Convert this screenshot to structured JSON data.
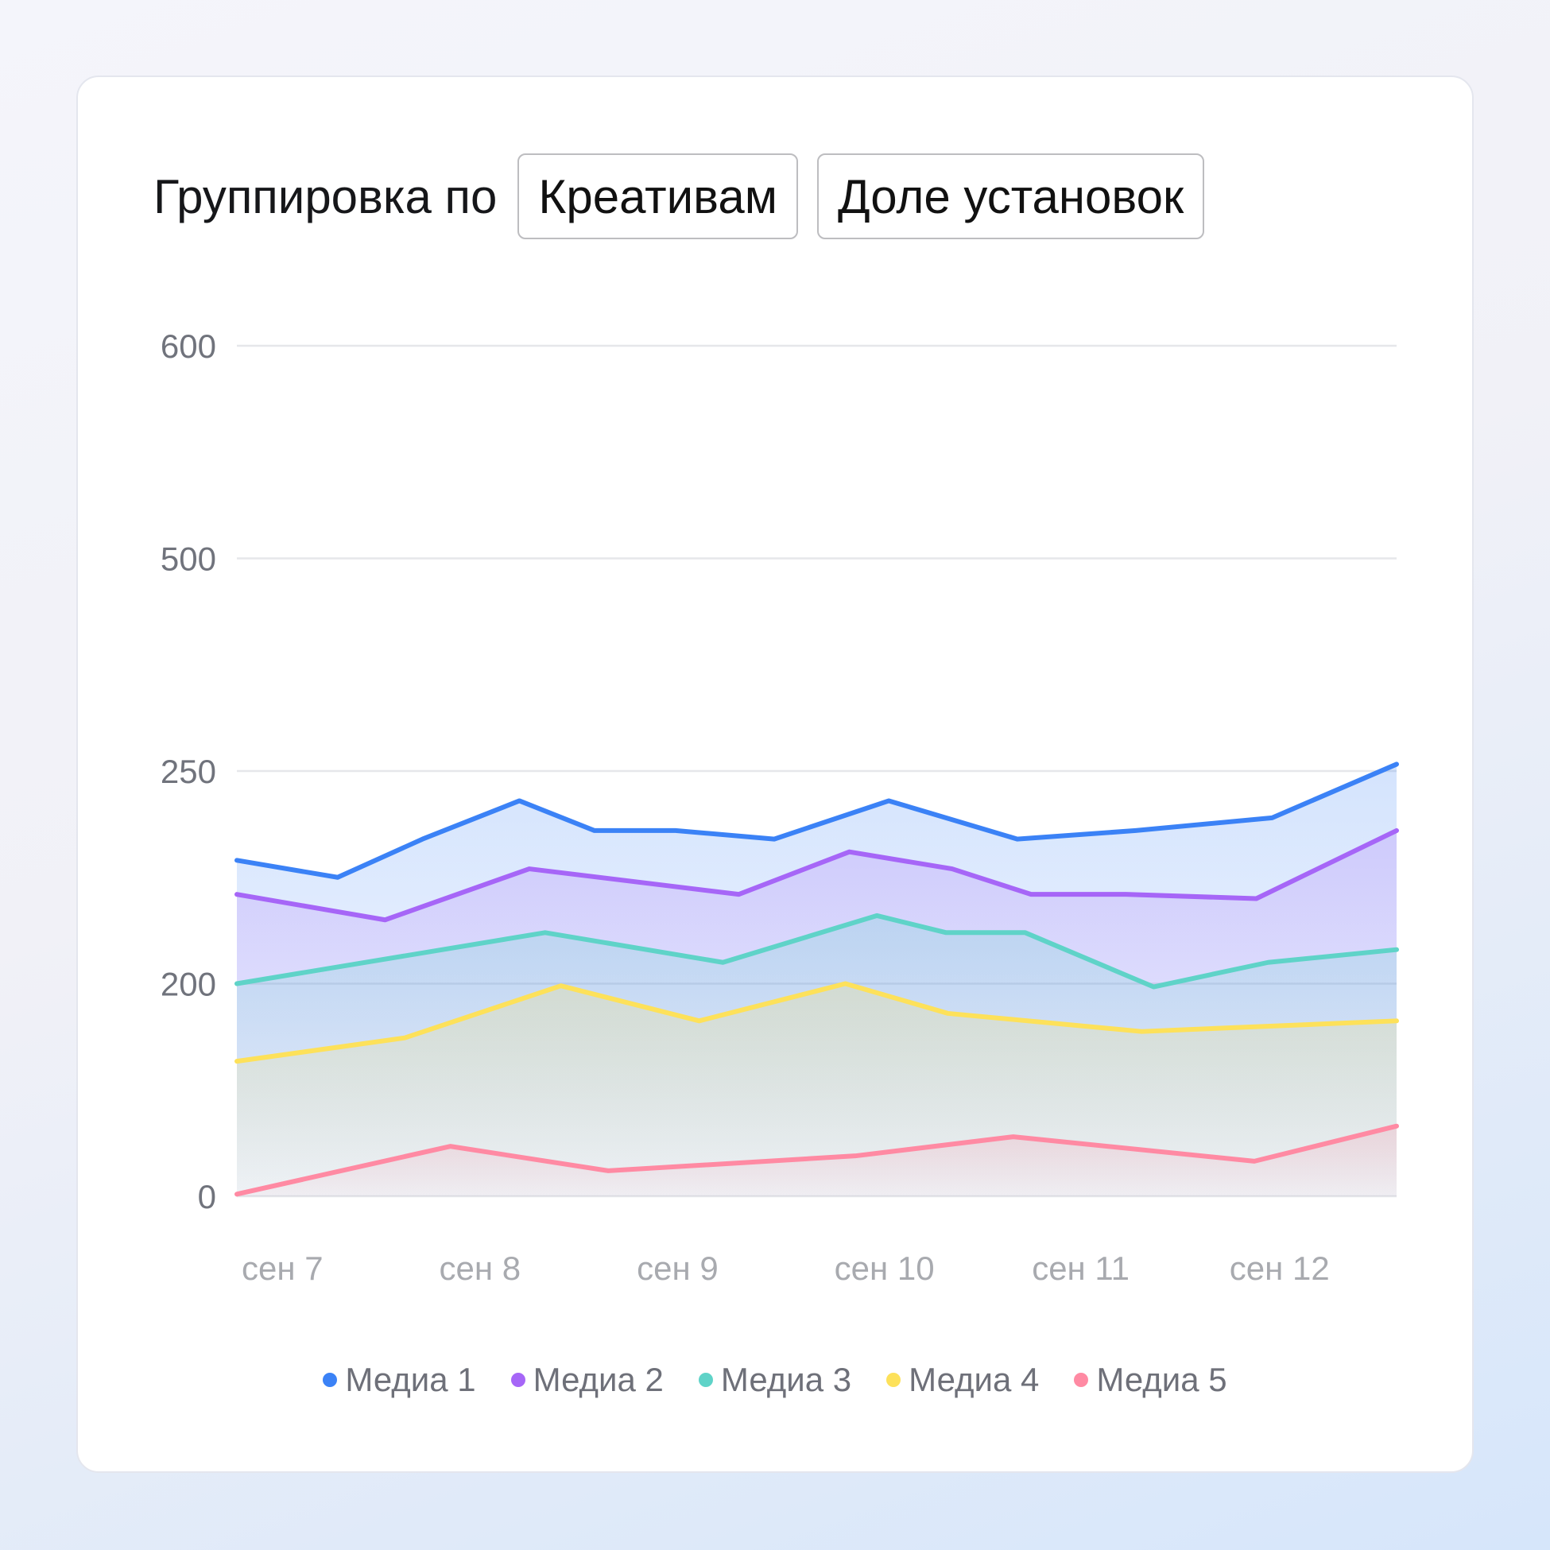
{
  "header": {
    "group_label": "Группировка по",
    "buttons": [
      "Креативам",
      "Доле установок"
    ]
  },
  "chart_data": {
    "type": "area",
    "title": "",
    "xlabel": "",
    "ylabel": "",
    "y_ticks": [
      0,
      200,
      250,
      500,
      600
    ],
    "y_tick_labels": [
      "0",
      "200",
      "250",
      "500",
      "600"
    ],
    "y_scale_note_visible": false,
    "x_ticks": [
      7,
      8,
      9,
      10,
      11,
      12
    ],
    "x_tick_labels": [
      "сен 7",
      "сен 8",
      "сен 9",
      "сен 10",
      "сен 11",
      "сен 12"
    ],
    "xlim": [
      7,
      12.87
    ],
    "grid": true,
    "legend_position": "bottom",
    "series": [
      {
        "name": "Медиа 1",
        "color": "#3b82f6",
        "x": [
          7,
          7.51,
          7.94,
          8.43,
          8.81,
          9.22,
          9.72,
          10.3,
          10.95,
          11.55,
          12.24,
          12.87
        ],
        "y": [
          229,
          225,
          234,
          243,
          236,
          236,
          234,
          243,
          234,
          236,
          239,
          258
        ]
      },
      {
        "name": "Медиа 2",
        "color": "#a666f7",
        "x": [
          7,
          7.75,
          8.48,
          9.54,
          10.1,
          10.62,
          11.02,
          11.5,
          12.16,
          12.87
        ],
        "y": [
          221,
          215,
          227,
          221,
          231,
          227,
          221,
          221,
          220,
          236
        ]
      },
      {
        "name": "Медиа 3",
        "color": "#5fd3c8",
        "x": [
          7,
          8.56,
          9.46,
          10.24,
          10.59,
          10.99,
          11.64,
          12.22,
          12.87
        ],
        "y": [
          200,
          212,
          205,
          216,
          212,
          212,
          197,
          205,
          208
        ]
      },
      {
        "name": "Медиа 4",
        "color": "#fde15a",
        "x": [
          7,
          7.85,
          8.64,
          9.34,
          10.08,
          10.6,
          11.58,
          12.87
        ],
        "y": [
          127,
          149,
          198,
          165,
          200,
          172,
          155,
          165
        ]
      },
      {
        "name": "Медиа 5",
        "color": "#ff8aa3",
        "x": [
          7,
          8.08,
          8.88,
          10.13,
          10.93,
          12.15,
          12.87
        ],
        "y": [
          2,
          47,
          24,
          38,
          56,
          33,
          66
        ]
      }
    ]
  }
}
